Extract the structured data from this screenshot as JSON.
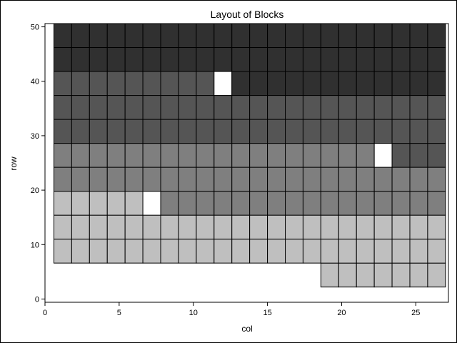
{
  "chart_data": {
    "type": "heatmap",
    "title": "Layout of Blocks",
    "xlabel": "col",
    "ylabel": "row",
    "xlim": [
      0,
      27.2
    ],
    "ylim": [
      -0.6,
      50.6
    ],
    "xticks": [
      0,
      5,
      10,
      15,
      20,
      25
    ],
    "yticks": [
      0,
      10,
      20,
      30,
      40,
      50
    ],
    "cell_width": 1.2,
    "cell_height": 4.4,
    "grid": false,
    "legend": "none",
    "colors": {
      "block1": "#303030",
      "block2": "#555555",
      "block3": "#7f7f7f",
      "block4": "#bfbfbf",
      "empty": "#ffffff"
    },
    "rows": [
      {
        "y": 2.2,
        "x_start": 18.6,
        "x_end": 27.0,
        "color": "block4"
      },
      {
        "y": 6.6,
        "x_start": 0.6,
        "x_end": 27.0,
        "color": "block4"
      },
      {
        "y": 11.0,
        "x_start": 0.6,
        "x_end": 27.0,
        "color": "block4"
      },
      {
        "y": 15.4,
        "x_start": 0.6,
        "x_end": 7.8,
        "color": "block4"
      },
      {
        "y": 15.4,
        "x_start": 7.8,
        "x_end": 27.0,
        "color": "block3"
      },
      {
        "y": 19.8,
        "x_start": 0.6,
        "x_end": 27.0,
        "color": "block3"
      },
      {
        "y": 24.2,
        "x_start": 0.6,
        "x_end": 22.2,
        "color": "block3"
      },
      {
        "y": 24.2,
        "x_start": 22.2,
        "x_end": 27.0,
        "color": "block2"
      },
      {
        "y": 28.6,
        "x_start": 0.6,
        "x_end": 27.0,
        "color": "block2"
      },
      {
        "y": 33.0,
        "x_start": 0.6,
        "x_end": 27.0,
        "color": "block2"
      },
      {
        "y": 37.4,
        "x_start": 0.6,
        "x_end": 12.6,
        "color": "block2"
      },
      {
        "y": 37.4,
        "x_start": 12.6,
        "x_end": 27.0,
        "color": "block1"
      },
      {
        "y": 41.8,
        "x_start": 0.6,
        "x_end": 27.0,
        "color": "block1"
      },
      {
        "y": 46.2,
        "x_start": 0.6,
        "x_end": 27.0,
        "color": "block1"
      }
    ],
    "empty_cells": [
      {
        "x": 6.6,
        "y": 15.4
      },
      {
        "x": 22.2,
        "y": 24.2
      },
      {
        "x": 11.4,
        "y": 37.4
      }
    ]
  }
}
